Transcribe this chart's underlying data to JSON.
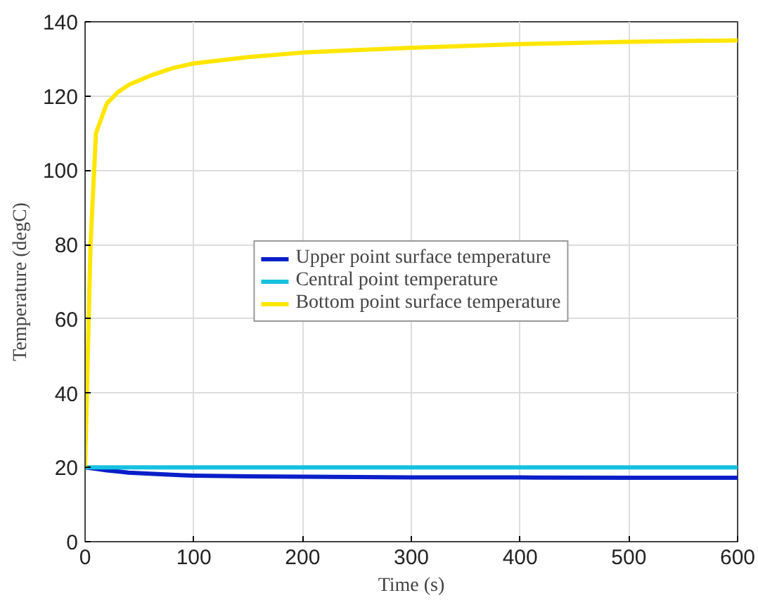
{
  "chart_data": {
    "type": "line",
    "xlabel": "Time (s)",
    "ylabel": "Temperature (degC)",
    "xlim": [
      0,
      600
    ],
    "ylim": [
      0,
      140
    ],
    "xticks": [
      0,
      100,
      200,
      300,
      400,
      500,
      600
    ],
    "yticks": [
      0,
      20,
      40,
      60,
      80,
      100,
      120,
      140
    ],
    "grid": true,
    "legend": "center",
    "line_style": "solid",
    "x": [
      0,
      5,
      10,
      20,
      30,
      40,
      60,
      80,
      100,
      150,
      200,
      250,
      300,
      400,
      500,
      600
    ],
    "series": [
      {
        "name": "Upper point surface temperature",
        "color": "#0a1fc8",
        "values": [
          20,
          19.8,
          19.6,
          19.2,
          18.9,
          18.6,
          18.3,
          18,
          17.8,
          17.6,
          17.5,
          17.4,
          17.3,
          17.3,
          17.2,
          17.2
        ]
      },
      {
        "name": "Central point temperature",
        "color": "#16c0e0",
        "values": [
          20,
          20,
          20,
          20,
          20,
          20,
          20,
          20,
          20,
          20,
          20,
          20,
          20,
          20,
          20,
          20
        ]
      },
      {
        "name": "Bottom point surface temperature",
        "color": "#ffe600",
        "values": [
          20,
          80,
          110,
          118,
          121,
          123,
          125.5,
          127.5,
          128.8,
          130.5,
          131.7,
          132.4,
          133,
          134,
          134.6,
          135
        ]
      }
    ]
  }
}
